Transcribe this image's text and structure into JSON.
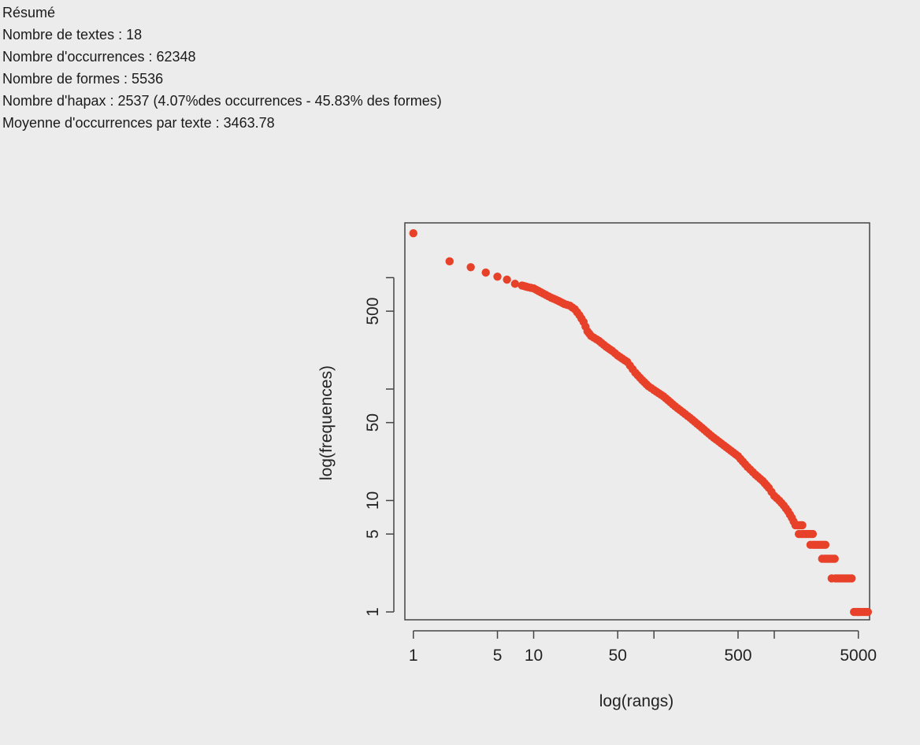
{
  "summary": {
    "title": "Résumé",
    "lines": [
      "Nombre de textes : 18",
      "Nombre d'occurrences : 62348",
      "Nombre de formes : 5536",
      "Nombre d'hapax : 2537 (4.07%des occurrences - 45.83% des formes)",
      "Moyenne d'occurrences par texte : 3463.78"
    ]
  },
  "chart_data": {
    "type": "scatter",
    "scale": "log-log",
    "xlabel": "log(rangs)",
    "ylabel": "log(frequences)",
    "x_ticks": [
      1,
      5,
      10,
      50,
      100,
      500,
      1000,
      5000
    ],
    "x_tick_labels": [
      "1",
      "5",
      "10",
      "50",
      "",
      "500",
      "",
      "5000"
    ],
    "y_ticks": [
      1,
      5,
      10,
      50,
      100,
      500,
      1000
    ],
    "y_tick_labels": [
      "1",
      "5",
      "10",
      "50",
      "",
      "500",
      ""
    ],
    "xlim": [
      0.85,
      6200
    ],
    "ylim": [
      0.85,
      3100
    ],
    "point_color": "#e8412a",
    "grid": false,
    "points": [
      [
        1,
        2500
      ],
      [
        2,
        1400
      ],
      [
        3,
        1240
      ],
      [
        4,
        1110
      ],
      [
        5,
        1020
      ],
      [
        6,
        960
      ],
      [
        7,
        880
      ],
      [
        8,
        850
      ],
      [
        9,
        820
      ],
      [
        10,
        800
      ],
      [
        12,
        720
      ],
      [
        14,
        660
      ],
      [
        16,
        620
      ],
      [
        18,
        580
      ],
      [
        20,
        560
      ],
      [
        22,
        520
      ],
      [
        24,
        460
      ],
      [
        26,
        400
      ],
      [
        28,
        330
      ],
      [
        30,
        300
      ],
      [
        35,
        270
      ],
      [
        40,
        240
      ],
      [
        45,
        220
      ],
      [
        50,
        200
      ],
      [
        60,
        175
      ],
      [
        70,
        140
      ],
      [
        80,
        120
      ],
      [
        90,
        106
      ],
      [
        100,
        98
      ],
      [
        120,
        86
      ],
      [
        150,
        70
      ],
      [
        200,
        55
      ],
      [
        250,
        45
      ],
      [
        300,
        38
      ],
      [
        400,
        30
      ],
      [
        500,
        25
      ],
      [
        600,
        20
      ],
      [
        700,
        17
      ],
      [
        800,
        15
      ],
      [
        900,
        13
      ],
      [
        1000,
        11
      ],
      [
        1100,
        10
      ],
      [
        1200,
        9
      ],
      [
        1300,
        8
      ],
      [
        1400,
        7
      ],
      [
        1500,
        6
      ],
      [
        1600,
        5
      ],
      [
        2000,
        4
      ],
      [
        2500,
        3
      ],
      [
        3000,
        2
      ],
      [
        5000,
        1
      ]
    ],
    "step_runs": [
      {
        "y": 6,
        "from": 1550,
        "to": 1710
      },
      {
        "y": 5,
        "from": 1700,
        "to": 2090
      },
      {
        "y": 4,
        "from": 2100,
        "to": 2660
      },
      {
        "y": 3,
        "from": 2630,
        "to": 3180
      },
      {
        "y": 2,
        "from": 3230,
        "to": 4400
      },
      {
        "y": 1,
        "from": 4600,
        "to": 6000
      }
    ]
  }
}
